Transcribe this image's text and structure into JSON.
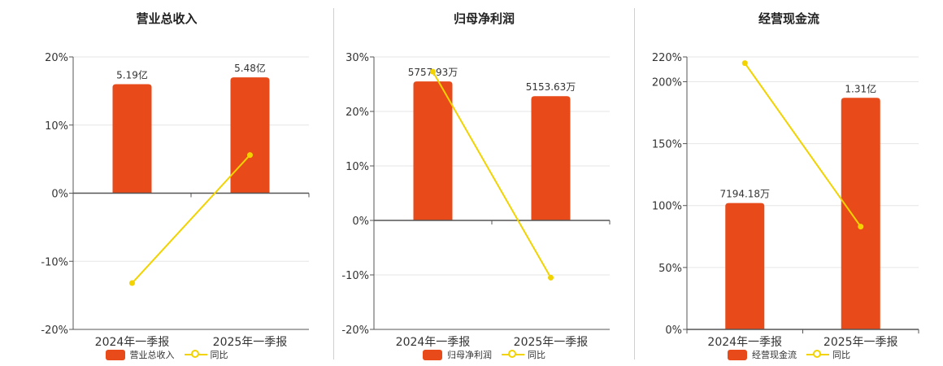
{
  "colors": {
    "bar": "#E84A1A",
    "line": "#F2D300",
    "grid": "#e6e6e6",
    "axis": "#555555",
    "text": "#333333"
  },
  "chart_data": [
    {
      "type": "bar",
      "title": "营业总收入",
      "categories": [
        "2024年一季报",
        "2025年一季报"
      ],
      "series": [
        {
          "name": "营业总收入",
          "type": "bar",
          "values": [
            16.0,
            17.0
          ],
          "labels": [
            "5.19亿",
            "5.48亿"
          ]
        },
        {
          "name": "同比",
          "type": "line",
          "values": [
            -13.2,
            5.6
          ]
        }
      ],
      "ylim": [
        -20,
        20
      ],
      "yticks": [
        -20,
        -10,
        0,
        10,
        20
      ],
      "ytick_labels": [
        "-20%",
        "-10%",
        "0%",
        "10%",
        "20%"
      ]
    },
    {
      "type": "bar",
      "title": "归母净利润",
      "categories": [
        "2024年一季报",
        "2025年一季报"
      ],
      "series": [
        {
          "name": "归母净利润",
          "type": "bar",
          "values": [
            25.5,
            22.8
          ],
          "labels": [
            "5757.93万",
            "5153.63万"
          ]
        },
        {
          "name": "同比",
          "type": "line",
          "values": [
            27.3,
            -10.5
          ]
        }
      ],
      "ylim": [
        -20,
        30
      ],
      "yticks": [
        -20,
        -10,
        0,
        10,
        20,
        30
      ],
      "ytick_labels": [
        "-20%",
        "-10%",
        "0%",
        "10%",
        "20%",
        "30%"
      ]
    },
    {
      "type": "bar",
      "title": "经营现金流",
      "categories": [
        "2024年一季报",
        "2025年一季报"
      ],
      "series": [
        {
          "name": "经营现金流",
          "type": "bar",
          "values": [
            102,
            187
          ],
          "labels": [
            "7194.18万",
            "1.31亿"
          ]
        },
        {
          "name": "同比",
          "type": "line",
          "values": [
            215,
            83
          ]
        }
      ],
      "ylim": [
        0,
        220
      ],
      "yticks": [
        0,
        50,
        100,
        150,
        200,
        220
      ],
      "ytick_labels": [
        "0%",
        "50%",
        "100%",
        "150%",
        "200%",
        "220%"
      ]
    }
  ]
}
